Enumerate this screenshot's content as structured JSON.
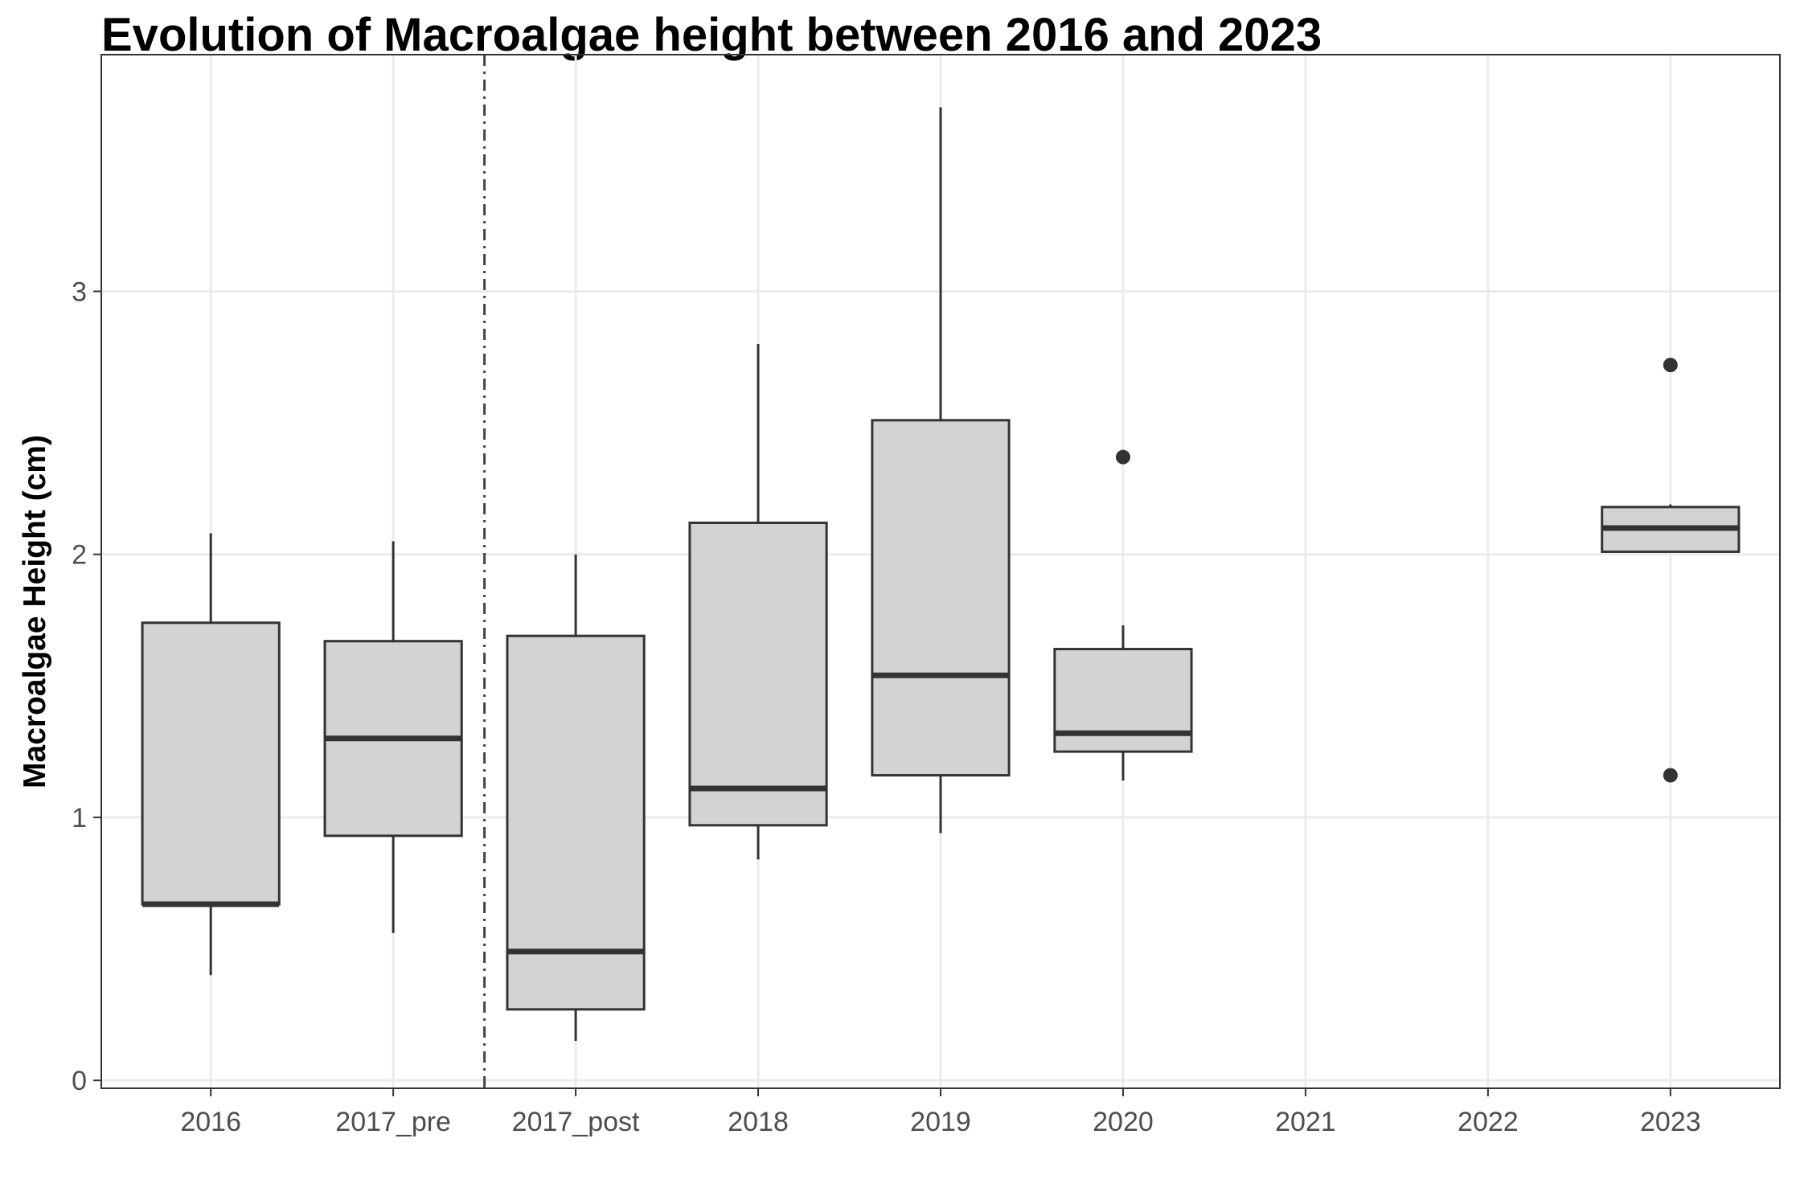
{
  "chart_data": {
    "type": "boxplot",
    "title": "Evolution of Macroalgae height between 2016 and 2023",
    "xlabel": "",
    "ylabel": "Macroalgae Height (cm)",
    "categories": [
      "2016",
      "2017_pre",
      "2017_post",
      "2018",
      "2019",
      "2020",
      "2021",
      "2022",
      "2023"
    ],
    "yticks": [
      0,
      1,
      2,
      3
    ],
    "ylim": [
      -0.03,
      3.9
    ],
    "grid": true,
    "vline_between": [
      "2017_pre",
      "2017_post"
    ],
    "box_fill": "#d3d3d3",
    "box_stroke": "#333333",
    "boxes": [
      {
        "category": "2016",
        "min": 0.4,
        "q1": 0.67,
        "median": 0.67,
        "q3": 1.74,
        "max": 2.08,
        "outliers": []
      },
      {
        "category": "2017_pre",
        "min": 0.56,
        "q1": 0.93,
        "median": 1.3,
        "q3": 1.67,
        "max": 2.05,
        "outliers": []
      },
      {
        "category": "2017_post",
        "min": 0.15,
        "q1": 0.27,
        "median": 0.49,
        "q3": 1.69,
        "max": 2.0,
        "outliers": []
      },
      {
        "category": "2018",
        "min": 0.84,
        "q1": 0.97,
        "median": 1.11,
        "q3": 2.12,
        "max": 2.8,
        "outliers": []
      },
      {
        "category": "2019",
        "min": 0.94,
        "q1": 1.16,
        "median": 1.54,
        "q3": 2.51,
        "max": 3.7,
        "outliers": []
      },
      {
        "category": "2020",
        "min": 1.14,
        "q1": 1.25,
        "median": 1.32,
        "q3": 1.64,
        "max": 1.73,
        "outliers": [
          2.37
        ]
      },
      {
        "category": "2023",
        "min": 2.01,
        "q1": 2.01,
        "median": 2.1,
        "q3": 2.18,
        "max": 2.19,
        "outliers": [
          2.72,
          1.16
        ]
      }
    ]
  }
}
